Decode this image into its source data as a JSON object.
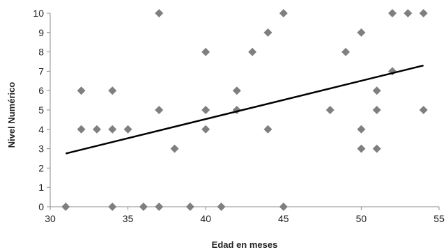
{
  "chart_data": {
    "type": "scatter",
    "title": "",
    "xlabel": "Edad en meses",
    "ylabel": "Nivel Numérico",
    "xlim": [
      30,
      55
    ],
    "ylim": [
      0,
      10
    ],
    "xticks": [
      30,
      35,
      40,
      45,
      50,
      55
    ],
    "yticks": [
      0,
      1,
      2,
      3,
      4,
      5,
      6,
      7,
      8,
      9,
      10
    ],
    "grid": false,
    "legend": "none",
    "marker": "diamond",
    "marker_color": "#7f7f7f",
    "trendline": {
      "type": "linear",
      "x": [
        31,
        54
      ],
      "y": [
        2.75,
        7.3
      ],
      "color": "#000000"
    },
    "series": [
      {
        "points": [
          [
            31,
            0
          ],
          [
            32,
            6
          ],
          [
            32,
            4
          ],
          [
            33,
            4
          ],
          [
            34,
            6
          ],
          [
            34,
            4
          ],
          [
            34,
            0
          ],
          [
            35,
            4
          ],
          [
            36,
            0
          ],
          [
            37,
            10
          ],
          [
            37,
            5
          ],
          [
            37,
            0
          ],
          [
            38,
            3
          ],
          [
            39,
            0
          ],
          [
            40,
            8
          ],
          [
            40,
            5
          ],
          [
            40,
            4
          ],
          [
            41,
            0
          ],
          [
            42,
            6
          ],
          [
            42,
            5
          ],
          [
            43,
            8
          ],
          [
            44,
            9
          ],
          [
            44,
            4
          ],
          [
            45,
            10
          ],
          [
            45,
            0
          ],
          [
            48,
            5
          ],
          [
            49,
            8
          ],
          [
            50,
            9
          ],
          [
            50,
            4
          ],
          [
            50,
            3
          ],
          [
            51,
            6
          ],
          [
            51,
            5
          ],
          [
            51,
            3
          ],
          [
            52,
            10
          ],
          [
            52,
            7
          ],
          [
            53,
            10
          ],
          [
            54,
            10
          ],
          [
            54,
            5
          ]
        ]
      }
    ]
  }
}
